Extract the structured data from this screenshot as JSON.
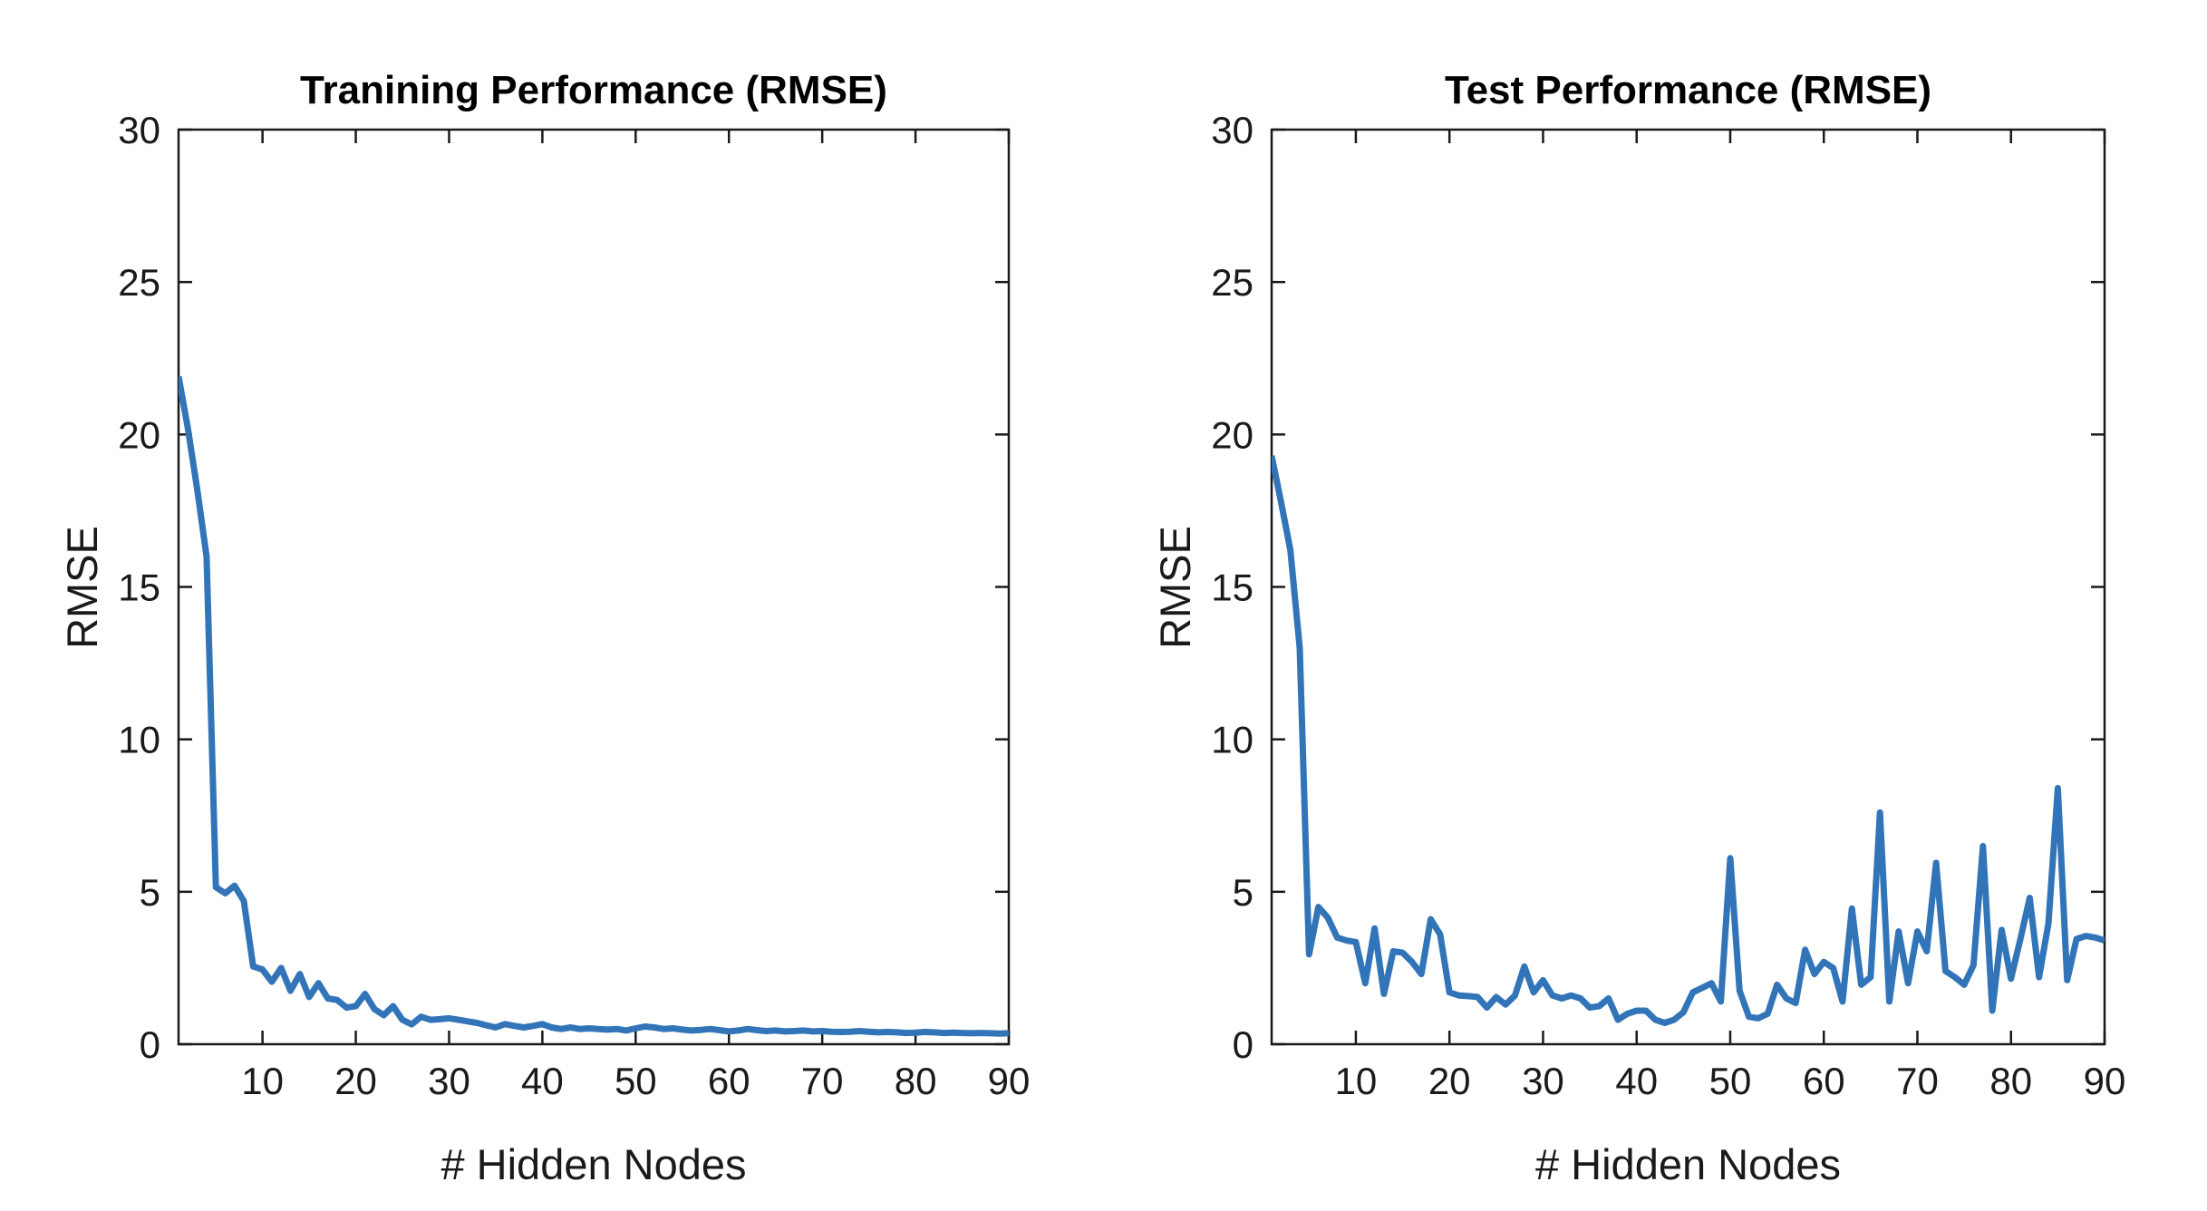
{
  "figure": {
    "background_color": "#ffffff",
    "line_color": "#3274b8",
    "axis_color": "#1a1a1a",
    "title_color": "#000000"
  },
  "chart_data": [
    {
      "type": "line",
      "title": "Tranining Performance (RMSE)",
      "xlabel": "# Hidden Nodes",
      "ylabel": "RMSE",
      "xlim": [
        1,
        90
      ],
      "ylim": [
        0,
        30
      ],
      "xticks": [
        10,
        20,
        30,
        40,
        50,
        60,
        70,
        80,
        90
      ],
      "yticks": [
        0,
        5,
        10,
        15,
        20,
        25,
        30
      ],
      "grid": false,
      "legend": null,
      "x_start": 1,
      "x_step": 1,
      "values": [
        21.9,
        20.2,
        18.2,
        16.0,
        5.15,
        4.95,
        5.2,
        4.7,
        2.55,
        2.45,
        2.05,
        2.5,
        1.75,
        2.3,
        1.55,
        2.0,
        1.5,
        1.45,
        1.2,
        1.25,
        1.65,
        1.15,
        0.95,
        1.25,
        0.8,
        0.65,
        0.9,
        0.8,
        0.82,
        0.85,
        0.8,
        0.75,
        0.7,
        0.62,
        0.55,
        0.66,
        0.6,
        0.55,
        0.6,
        0.66,
        0.55,
        0.5,
        0.55,
        0.5,
        0.52,
        0.5,
        0.48,
        0.5,
        0.45,
        0.52,
        0.58,
        0.55,
        0.5,
        0.52,
        0.48,
        0.45,
        0.47,
        0.5,
        0.46,
        0.42,
        0.45,
        0.5,
        0.46,
        0.43,
        0.45,
        0.42,
        0.43,
        0.45,
        0.42,
        0.43,
        0.41,
        0.4,
        0.41,
        0.43,
        0.41,
        0.39,
        0.4,
        0.39,
        0.37,
        0.38,
        0.4,
        0.39,
        0.37,
        0.38,
        0.37,
        0.36,
        0.37,
        0.36,
        0.35,
        0.36
      ]
    },
    {
      "type": "line",
      "title": "Test Performance (RMSE)",
      "xlabel": "# Hidden Nodes",
      "ylabel": "RMSE",
      "xlim": [
        1,
        90
      ],
      "ylim": [
        0,
        30
      ],
      "xticks": [
        10,
        20,
        30,
        40,
        50,
        60,
        70,
        80,
        90
      ],
      "yticks": [
        0,
        5,
        10,
        15,
        20,
        25,
        30
      ],
      "grid": false,
      "legend": null,
      "x_start": 1,
      "x_step": 1,
      "values": [
        19.3,
        17.8,
        16.2,
        13.0,
        2.95,
        4.5,
        4.15,
        3.5,
        3.4,
        3.35,
        2.0,
        3.8,
        1.65,
        3.05,
        3.0,
        2.7,
        2.3,
        4.1,
        3.6,
        1.7,
        1.6,
        1.58,
        1.55,
        1.2,
        1.55,
        1.3,
        1.6,
        2.55,
        1.7,
        2.1,
        1.6,
        1.5,
        1.6,
        1.5,
        1.2,
        1.25,
        1.5,
        0.8,
        1.0,
        1.1,
        1.1,
        0.8,
        0.7,
        0.8,
        1.05,
        1.7,
        1.85,
        2.0,
        1.4,
        6.1,
        1.75,
        0.9,
        0.85,
        1.0,
        1.95,
        1.5,
        1.35,
        3.1,
        2.3,
        2.7,
        2.5,
        1.4,
        4.45,
        1.95,
        2.2,
        7.6,
        1.4,
        3.7,
        2.0,
        3.7,
        3.05,
        5.95,
        2.4,
        2.2,
        1.95,
        2.6,
        6.5,
        1.1,
        3.75,
        2.15,
        3.45,
        4.8,
        2.2,
        3.95,
        8.4,
        2.1,
        3.45,
        3.55,
        3.5,
        3.4
      ]
    }
  ]
}
